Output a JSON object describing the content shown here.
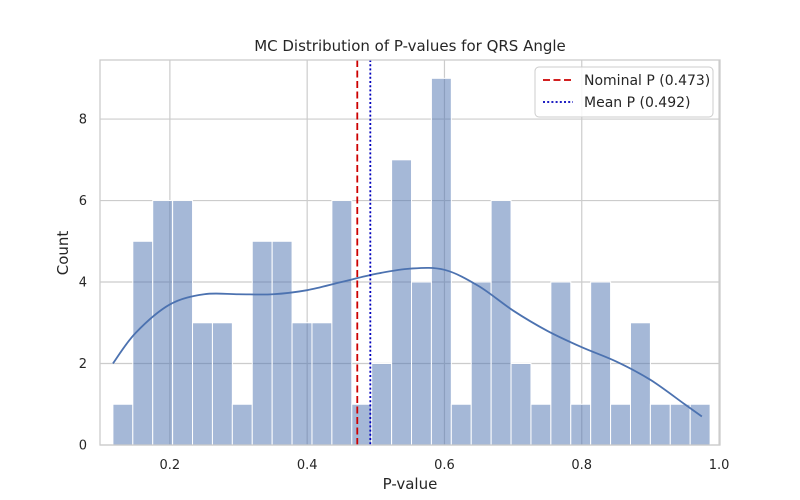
{
  "chart_data": {
    "type": "bar",
    "title": "MC Distribution of P-values for QRS Angle",
    "xlabel": "P-value",
    "ylabel": "Count",
    "xlim": [
      0.0982,
      1.0014
    ],
    "ylim": [
      0,
      9.45
    ],
    "x_ticks": [
      0.2,
      0.4,
      0.6,
      0.8,
      1.0
    ],
    "x_tick_labels": [
      "0.2",
      "0.4",
      "0.6",
      "0.8",
      "1.0"
    ],
    "y_ticks": [
      0,
      2,
      4,
      6,
      8
    ],
    "y_tick_labels": [
      "0",
      "2",
      "4",
      "6",
      "8"
    ],
    "grid": true,
    "bin_edges": [
      0.117,
      0.146,
      0.175,
      0.204,
      0.233,
      0.262,
      0.291,
      0.32,
      0.349,
      0.378,
      0.407,
      0.436,
      0.465,
      0.494,
      0.523,
      0.552,
      0.581,
      0.61,
      0.639,
      0.668,
      0.697,
      0.726,
      0.755,
      0.784,
      0.813,
      0.842,
      0.871,
      0.9,
      0.929,
      0.958,
      0.987
    ],
    "counts": [
      1,
      5,
      6,
      6,
      3,
      3,
      1,
      5,
      5,
      3,
      3,
      6,
      1,
      2,
      7,
      4,
      9,
      1,
      4,
      6,
      2,
      1,
      4,
      1,
      4,
      1,
      3,
      1,
      1,
      1
    ],
    "kde": {
      "x": [
        0.117,
        0.15,
        0.2,
        0.25,
        0.3,
        0.35,
        0.4,
        0.45,
        0.5,
        0.55,
        0.6,
        0.65,
        0.7,
        0.75,
        0.8,
        0.85,
        0.9,
        0.95,
        0.975
      ],
      "y": [
        2.0,
        2.75,
        3.45,
        3.7,
        3.7,
        3.7,
        3.8,
        4.0,
        4.2,
        4.33,
        4.3,
        3.9,
        3.3,
        2.8,
        2.4,
        2.05,
        1.6,
        1.0,
        0.7
      ]
    },
    "reference_lines": [
      {
        "name": "Nominal P (0.473)",
        "x": 0.473,
        "color": "#cc0000",
        "style": "dashed"
      },
      {
        "name": "Mean P (0.492)",
        "x": 0.492,
        "color": "#0000bb",
        "style": "dotted"
      }
    ],
    "legend_position": "top-right",
    "bar_color": "#4c72b0",
    "kde_color": "#4c72b0"
  }
}
